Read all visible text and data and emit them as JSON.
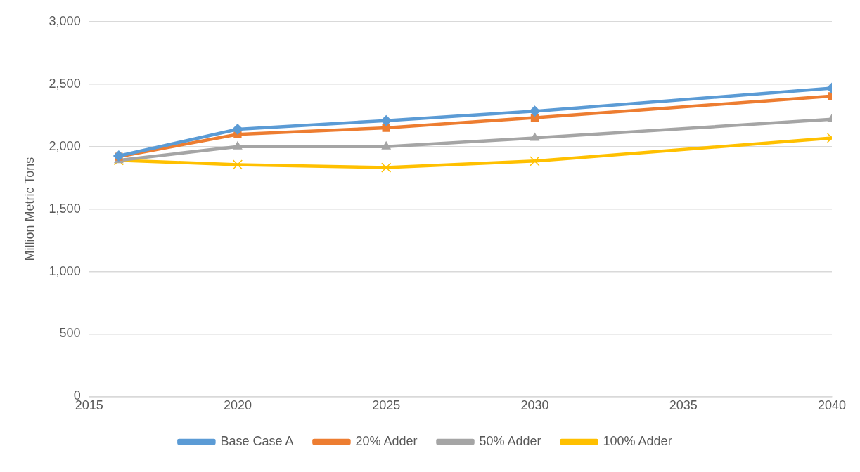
{
  "chart_data": {
    "type": "line",
    "ylabel": "Million Metric Tons",
    "x": [
      2016,
      2020,
      2025,
      2030,
      2040
    ],
    "xlim": [
      2015,
      2040
    ],
    "xticks": [
      2015,
      2020,
      2025,
      2030,
      2035,
      2040
    ],
    "ylim": [
      0,
      3000
    ],
    "yticks": [
      {
        "value": 0,
        "label": "0"
      },
      {
        "value": 500,
        "label": "500"
      },
      {
        "value": 1000,
        "label": "1,000"
      },
      {
        "value": 1500,
        "label": "1,500"
      },
      {
        "value": 2000,
        "label": "2,000"
      },
      {
        "value": 2500,
        "label": "2,500"
      },
      {
        "value": 3000,
        "label": "3,000"
      }
    ],
    "grid": "y",
    "legend": "bottom",
    "line_style": "solid",
    "series": [
      {
        "name": "Base Case A",
        "color": "#5b9bd5",
        "marker": "diamond",
        "values": [
          1925,
          2139,
          2208,
          2283,
          2468
        ]
      },
      {
        "name": "20% Adder",
        "color": "#ed7d31",
        "marker": "square",
        "values": [
          1919,
          2098,
          2150,
          2231,
          2404
        ]
      },
      {
        "name": "50% Adder",
        "color": "#a5a5a5",
        "marker": "triangle",
        "values": [
          1890,
          2000,
          2000,
          2069,
          2219
        ]
      },
      {
        "name": "100% Adder",
        "color": "#ffc000",
        "marker": "cross",
        "values": [
          1890,
          1855,
          1832,
          1884,
          2069
        ]
      }
    ]
  }
}
